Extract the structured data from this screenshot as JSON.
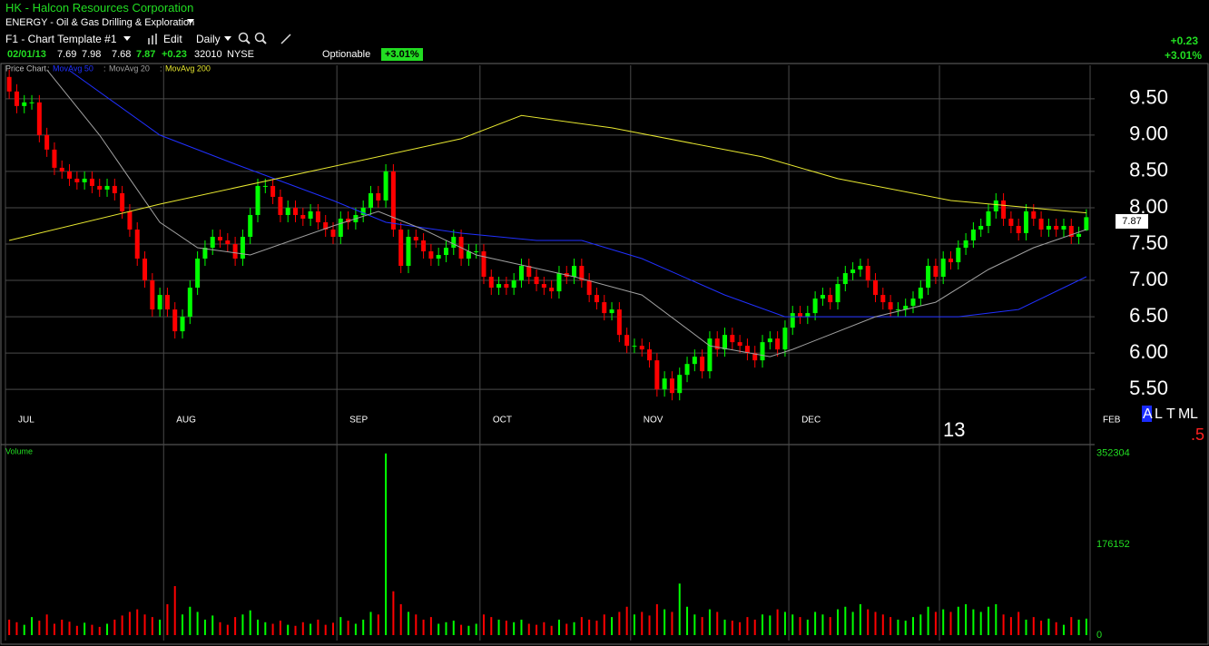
{
  "header": {
    "title": "HK - Halcon Resources Corporation",
    "sector": "ENERGY - Oil & Gas Drilling & Exploration",
    "template": "F1 - Chart Template #1",
    "edit": "Edit",
    "period": "Daily",
    "date": "02/01/13",
    "change": "+0.23",
    "change_pct": "+3.01%",
    "exchange": "NYSE",
    "flag": "Optionable"
  },
  "status": {
    "letters": [
      "A",
      "L",
      "T",
      "M",
      "L"
    ],
    "fraction": ".5"
  },
  "chart_data": {
    "type": "candlestick",
    "price_label": "Price Chart",
    "legend_separator": ":",
    "volume_label": "Volume",
    "up_color": "#00ff00",
    "down_color": "#ff0000",
    "grid": true,
    "xlim": [
      -0.5,
      144.1
    ],
    "xticks": [
      {
        "value": -0.5,
        "label": "JUL"
      },
      {
        "value": 20.5,
        "label": "AUG"
      },
      {
        "value": 43.5,
        "label": "SEP"
      },
      {
        "value": 62.5,
        "label": "OCT"
      },
      {
        "value": 82.5,
        "label": "NOV"
      },
      {
        "value": 103.5,
        "label": "DEC"
      },
      {
        "value": 143.5,
        "label": "FEB"
      }
    ],
    "year_tick": {
      "value": 123.5,
      "label": "13"
    },
    "ylim": [
      5.24,
      9.96
    ],
    "yticks": [
      {
        "value": 5.5,
        "label": "5.50"
      },
      {
        "value": 6,
        "label": "6.00"
      },
      {
        "value": 6.5,
        "label": "6.50"
      },
      {
        "value": 7,
        "label": "7.00"
      },
      {
        "value": 7.5,
        "label": "7.50"
      },
      {
        "value": 8,
        "label": "8.00"
      },
      {
        "value": 8.5,
        "label": "8.50"
      },
      {
        "value": 9,
        "label": "9.00"
      },
      {
        "value": 9.5,
        "label": "9.50"
      }
    ],
    "vlim": [
      0,
      366000
    ],
    "vticks": [
      0,
      176152,
      352304
    ],
    "open": [
      9.8,
      9.6,
      9.4,
      9.45,
      9.45,
      9.0,
      8.8,
      8.55,
      8.5,
      8.4,
      8.35,
      8.4,
      8.3,
      8.25,
      8.3,
      8.2,
      7.95,
      7.7,
      7.3,
      7.0,
      6.6,
      6.8,
      6.6,
      6.3,
      6.5,
      6.9,
      7.3,
      7.45,
      7.6,
      7.55,
      7.5,
      7.3,
      7.6,
      7.9,
      8.3,
      8.3,
      8.15,
      7.9,
      8.0,
      7.9,
      7.85,
      7.95,
      7.8,
      7.7,
      7.6,
      7.85,
      7.8,
      7.9,
      8.0,
      8.2,
      8.1,
      8.5,
      7.7,
      7.2,
      7.6,
      7.55,
      7.4,
      7.3,
      7.35,
      7.45,
      7.6,
      7.3,
      7.4,
      7.4,
      7.05,
      6.9,
      6.95,
      6.9,
      7.0,
      7.2,
      7.05,
      6.95,
      6.9,
      6.85,
      7.1,
      7.05,
      7.2,
      7.0,
      6.8,
      6.7,
      6.55,
      6.6,
      6.25,
      6.1,
      6.1,
      6.05,
      5.9,
      5.5,
      5.65,
      5.45,
      5.7,
      5.85,
      5.95,
      5.75,
      6.2,
      6.05,
      6.25,
      6.15,
      6.1,
      6.0,
      5.9,
      6.15,
      6.2,
      6.05,
      6.35,
      6.55,
      6.5,
      6.55,
      6.75,
      6.8,
      6.7,
      6.95,
      7.1,
      7.15,
      7.2,
      7.0,
      6.8,
      6.7,
      6.6,
      6.6,
      6.65,
      6.75,
      6.9,
      7.2,
      7.05,
      7.3,
      7.25,
      7.45,
      7.55,
      7.7,
      7.75,
      7.95,
      8.1,
      7.85,
      7.75,
      7.65,
      7.95,
      7.85,
      7.7,
      7.75,
      7.7,
      7.75,
      7.6,
      7.69
    ],
    "high": [
      9.9,
      9.7,
      9.55,
      9.55,
      9.55,
      9.1,
      8.9,
      8.65,
      8.6,
      8.5,
      8.5,
      8.5,
      8.4,
      8.4,
      8.4,
      8.3,
      8.05,
      7.8,
      7.4,
      7.1,
      6.9,
      6.9,
      6.7,
      6.6,
      7.0,
      7.4,
      7.55,
      7.7,
      7.7,
      7.65,
      7.6,
      7.7,
      8.0,
      8.4,
      8.4,
      8.4,
      8.25,
      8.1,
      8.1,
      8.0,
      8.05,
      8.05,
      7.9,
      7.8,
      7.95,
      7.95,
      8.0,
      8.1,
      8.3,
      8.3,
      8.6,
      8.6,
      7.8,
      7.7,
      7.7,
      7.65,
      7.5,
      7.45,
      7.55,
      7.7,
      7.7,
      7.5,
      7.5,
      7.5,
      7.15,
      7.05,
      7.05,
      7.1,
      7.3,
      7.3,
      7.15,
      7.05,
      7.0,
      7.2,
      7.2,
      7.3,
      7.3,
      7.1,
      6.9,
      6.8,
      6.7,
      6.7,
      6.35,
      6.2,
      6.2,
      6.15,
      6.0,
      5.75,
      5.75,
      5.8,
      5.95,
      6.05,
      6.05,
      6.3,
      6.3,
      6.35,
      6.35,
      6.25,
      6.2,
      6.1,
      6.25,
      6.3,
      6.3,
      6.45,
      6.65,
      6.65,
      6.65,
      6.85,
      6.9,
      6.9,
      7.05,
      7.2,
      7.25,
      7.3,
      7.3,
      7.1,
      6.9,
      6.8,
      6.7,
      6.75,
      6.85,
      7.0,
      7.3,
      7.3,
      7.4,
      7.4,
      7.55,
      7.65,
      7.8,
      7.85,
      8.05,
      8.2,
      8.2,
      7.95,
      7.85,
      8.05,
      8.05,
      7.95,
      7.85,
      7.85,
      7.85,
      7.85,
      7.74,
      7.98
    ],
    "low": [
      9.5,
      9.3,
      9.3,
      9.35,
      8.9,
      8.7,
      8.45,
      8.4,
      8.3,
      8.25,
      8.25,
      8.2,
      8.15,
      8.15,
      8.1,
      7.85,
      7.6,
      7.2,
      6.9,
      6.5,
      6.5,
      6.5,
      6.2,
      6.2,
      6.4,
      6.8,
      7.2,
      7.35,
      7.45,
      7.4,
      7.2,
      7.2,
      7.5,
      7.8,
      8.2,
      8.05,
      7.8,
      7.8,
      7.8,
      7.75,
      7.75,
      7.7,
      7.6,
      7.5,
      7.5,
      7.7,
      7.7,
      7.8,
      7.9,
      8.0,
      8.0,
      7.6,
      7.1,
      7.1,
      7.45,
      7.3,
      7.2,
      7.2,
      7.25,
      7.35,
      7.2,
      7.2,
      7.3,
      6.95,
      6.8,
      6.8,
      6.8,
      6.8,
      6.9,
      6.95,
      6.85,
      6.8,
      6.75,
      6.75,
      6.95,
      6.95,
      6.9,
      6.7,
      6.6,
      6.45,
      6.45,
      6.15,
      6.0,
      6.0,
      5.95,
      5.8,
      5.4,
      5.4,
      5.35,
      5.35,
      5.6,
      5.75,
      5.65,
      5.65,
      5.95,
      5.95,
      6.05,
      6.0,
      5.9,
      5.8,
      5.8,
      6.05,
      5.95,
      5.95,
      6.25,
      6.4,
      6.4,
      6.45,
      6.65,
      6.6,
      6.6,
      6.85,
      7.0,
      7.05,
      6.9,
      6.7,
      6.6,
      6.5,
      6.5,
      6.5,
      6.55,
      6.65,
      6.8,
      6.95,
      6.95,
      7.15,
      7.15,
      7.35,
      7.45,
      7.6,
      7.65,
      7.85,
      7.75,
      7.65,
      7.55,
      7.55,
      7.75,
      7.6,
      7.6,
      7.6,
      7.6,
      7.5,
      7.5,
      7.68
    ],
    "close": [
      9.6,
      9.4,
      9.45,
      9.45,
      9.0,
      8.8,
      8.55,
      8.5,
      8.4,
      8.35,
      8.4,
      8.3,
      8.25,
      8.3,
      8.2,
      7.95,
      7.7,
      7.3,
      7.0,
      6.6,
      6.8,
      6.6,
      6.3,
      6.5,
      6.9,
      7.3,
      7.45,
      7.6,
      7.55,
      7.5,
      7.3,
      7.6,
      7.9,
      8.3,
      8.3,
      8.15,
      7.9,
      8.0,
      7.9,
      7.85,
      7.95,
      7.8,
      7.7,
      7.6,
      7.85,
      7.8,
      7.9,
      8.0,
      8.2,
      8.1,
      8.5,
      7.7,
      7.2,
      7.6,
      7.55,
      7.4,
      7.3,
      7.35,
      7.45,
      7.6,
      7.3,
      7.4,
      7.4,
      7.05,
      6.9,
      6.95,
      6.9,
      7.0,
      7.2,
      7.05,
      6.95,
      6.9,
      6.85,
      7.1,
      7.05,
      7.2,
      7.0,
      6.8,
      6.7,
      6.55,
      6.6,
      6.25,
      6.1,
      6.1,
      6.05,
      5.9,
      5.5,
      5.65,
      5.45,
      5.7,
      5.85,
      5.95,
      5.75,
      6.2,
      6.05,
      6.25,
      6.15,
      6.1,
      6.0,
      5.9,
      6.15,
      6.2,
      6.05,
      6.35,
      6.55,
      6.5,
      6.55,
      6.75,
      6.8,
      6.7,
      6.95,
      7.1,
      7.15,
      7.2,
      7.0,
      6.8,
      6.7,
      6.6,
      6.6,
      6.65,
      6.75,
      6.9,
      7.2,
      7.05,
      7.3,
      7.25,
      7.45,
      7.55,
      7.7,
      7.75,
      7.95,
      8.1,
      7.85,
      7.75,
      7.65,
      7.95,
      7.85,
      7.7,
      7.75,
      7.7,
      7.75,
      7.6,
      7.64,
      7.87
    ],
    "volume": [
      30000,
      25000,
      20000,
      35000,
      28000,
      40000,
      22000,
      30000,
      26000,
      18000,
      24000,
      20000,
      16000,
      22000,
      30000,
      38000,
      45000,
      50000,
      40000,
      35000,
      30000,
      60000,
      95000,
      40000,
      55000,
      45000,
      30000,
      38000,
      25000,
      20000,
      35000,
      40000,
      48000,
      30000,
      25000,
      22000,
      28000,
      20000,
      18000,
      25000,
      22000,
      30000,
      20000,
      24000,
      35000,
      28000,
      22000,
      30000,
      45000,
      40000,
      352304,
      85000,
      60000,
      45000,
      40000,
      30000,
      35000,
      22000,
      25000,
      28000,
      20000,
      18000,
      22000,
      40000,
      35000,
      30000,
      28000,
      25000,
      30000,
      22000,
      20000,
      25000,
      18000,
      30000,
      22000,
      25000,
      35000,
      30000,
      28000,
      40000,
      35000,
      45000,
      55000,
      40000,
      45000,
      38000,
      60000,
      50000,
      45000,
      100000,
      55000,
      40000,
      35000,
      50000,
      45000,
      30000,
      28000,
      25000,
      35000,
      30000,
      40000,
      38000,
      50000,
      45000,
      40000,
      35000,
      30000,
      45000,
      40000,
      35000,
      50000,
      55000,
      45000,
      60000,
      50000,
      45000,
      40000,
      35000,
      30000,
      28000,
      35000,
      40000,
      55000,
      45000,
      50000,
      45000,
      55000,
      60000,
      50000,
      45000,
      55000,
      60000,
      40000,
      35000,
      45000,
      30000,
      35000,
      28000,
      32000,
      25000,
      20000,
      35000,
      30000,
      32010
    ],
    "moving_averages": [
      {
        "name": "MovAvg 50",
        "color": "#2030ff",
        "x": [
          8,
          20,
          30,
          43,
          50,
          60,
          70,
          76,
          84,
          95,
          103,
          126,
          134,
          143
        ],
        "values": [
          9.89,
          9.0,
          8.6,
          8.1,
          7.8,
          7.65,
          7.55,
          7.55,
          7.3,
          6.8,
          6.5,
          6.5,
          6.6,
          7.05
        ]
      },
      {
        "name": "MovAvg 20",
        "color": "#a0a0a0",
        "x": [
          5,
          12,
          20,
          25,
          32,
          43,
          49,
          55,
          62,
          75,
          84,
          93,
          101,
          104,
          115,
          123,
          130,
          136,
          143
        ],
        "values": [
          9.9,
          9.0,
          7.8,
          7.45,
          7.35,
          7.75,
          7.95,
          7.7,
          7.35,
          7.05,
          6.8,
          6.1,
          5.95,
          6.05,
          6.5,
          6.7,
          7.15,
          7.45,
          7.7
        ]
      },
      {
        "name": "MovAvg 200",
        "color": "#e8e830",
        "x": [
          0,
          20,
          40,
          60,
          68,
          80,
          100,
          110,
          125,
          143
        ],
        "values": [
          7.55,
          8.05,
          8.5,
          8.95,
          9.27,
          9.1,
          8.7,
          8.4,
          8.1,
          7.93
        ]
      }
    ]
  }
}
